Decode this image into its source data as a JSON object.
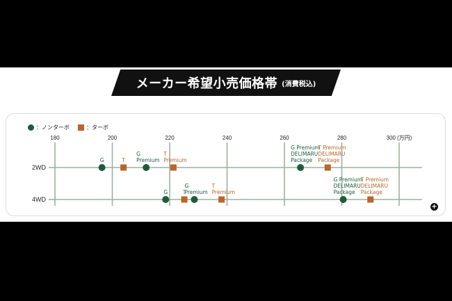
{
  "header": {
    "title": "メーカー希望小売価格帯",
    "subtitle": "(消費税込)"
  },
  "legend": {
    "non_turbo": "：ノンターボ",
    "turbo": "：ターボ"
  },
  "colors": {
    "non_turbo": "#1e5b3c",
    "turbo": "#b9652b",
    "grid": "#9bb09e"
  },
  "chart_data": {
    "type": "scatter",
    "x_ticks": [
      "180",
      "200",
      "220",
      "240",
      "260",
      "280",
      "300"
    ],
    "x_unit": "(万円)",
    "xlim": [
      180,
      305
    ],
    "categories": [
      "2WD",
      "4WD"
    ],
    "series": [
      {
        "name": "ノンターボ",
        "points": [
          {
            "row": "2WD",
            "x": 196.4,
            "label": "G"
          },
          {
            "row": "2WD",
            "x": 211.8,
            "label": "G\nPremium"
          },
          {
            "row": "2WD",
            "x": 265.6,
            "label": "G Premium\nDELIMARU\nPackage"
          },
          {
            "row": "4WD",
            "x": 218.6,
            "label": "G"
          },
          {
            "row": "4WD",
            "x": 228.6,
            "label": "G\nPremium"
          },
          {
            "row": "4WD",
            "x": 280.5,
            "label": "G Premium\nDELIMARU\nPackage"
          }
        ]
      },
      {
        "name": "ターボ",
        "points": [
          {
            "row": "2WD",
            "x": 203.9,
            "label": "T"
          },
          {
            "row": "2WD",
            "x": 221.3,
            "label": "T\nPremium"
          },
          {
            "row": "2WD",
            "x": 275.1,
            "label": "T Premium\nDELIMARU\nPackage"
          },
          {
            "row": "4WD",
            "x": 225.1,
            "label": "T"
          },
          {
            "row": "4WD",
            "x": 238.1,
            "label": "T\nPremium"
          },
          {
            "row": "4WD",
            "x": 290.0,
            "label": "T Premium\nDELIMARU\nPackage"
          }
        ]
      }
    ]
  },
  "more_button": "+"
}
